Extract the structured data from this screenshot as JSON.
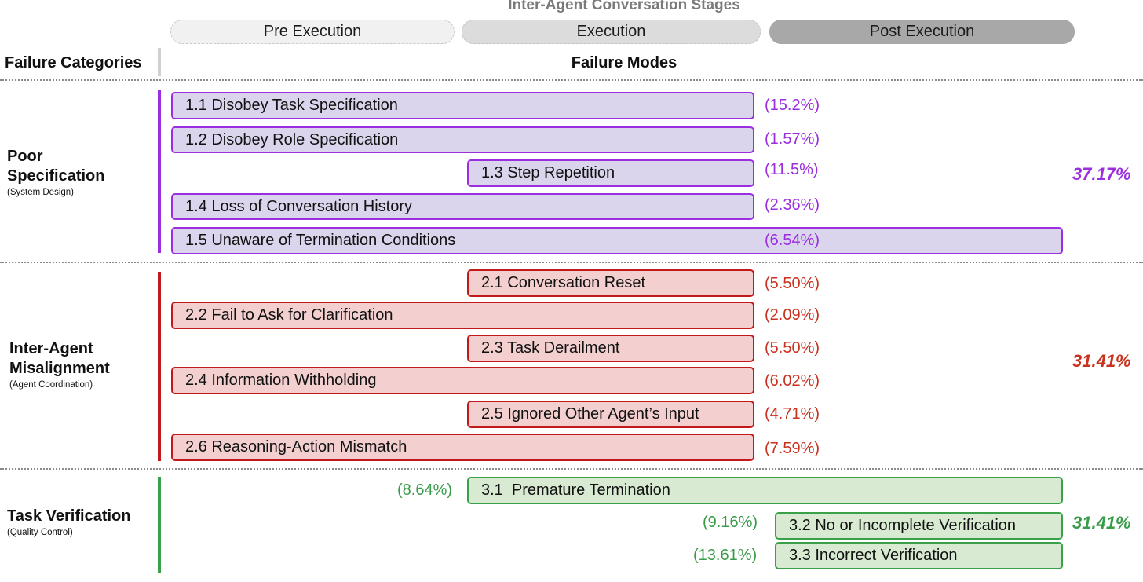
{
  "header": {
    "stages_title": "Inter-Agent Conversation Stages",
    "stages": [
      "Pre Execution",
      "Execution",
      "Post Execution"
    ],
    "failure_categories_label": "Failure Categories",
    "failure_modes_label": "Failure Modes"
  },
  "colors": {
    "purple": "#9b2fe0",
    "red": "#c21a1a",
    "green": "#3aa149",
    "purple_fill": "#dad5ec",
    "red_fill": "#f3d0cf",
    "green_fill": "#d8ebd2"
  },
  "categories": [
    {
      "name_line1": "Poor",
      "name_line2": "Specification",
      "subtitle": "(System Design)",
      "total": "37.17%",
      "modes": [
        {
          "label": "1.1 Disobey Task Specification",
          "pct": "(15.2%)"
        },
        {
          "label": "1.2 Disobey Role Specification",
          "pct": "(1.57%)"
        },
        {
          "label": "1.3 Step Repetition",
          "pct": "(11.5%)"
        },
        {
          "label": "1.4 Loss of Conversation History",
          "pct": "(2.36%)"
        },
        {
          "label": "1.5 Unaware of Termination Conditions",
          "pct": "(6.54%)"
        }
      ]
    },
    {
      "name_line1": "Inter-Agent",
      "name_line2": "Misalignment",
      "subtitle": "(Agent Coordination)",
      "total": "31.41%",
      "modes": [
        {
          "label": "2.1 Conversation Reset",
          "pct": "(5.50%)"
        },
        {
          "label": "2.2 Fail to Ask for Clarification",
          "pct": "(2.09%)"
        },
        {
          "label": "2.3 Task Derailment",
          "pct": "(5.50%)"
        },
        {
          "label": "2.4 Information Withholding",
          "pct": "(6.02%)"
        },
        {
          "label": "2.5 Ignored Other Agent’s Input",
          "pct": "(4.71%)"
        },
        {
          "label": "2.6 Reasoning-Action Mismatch",
          "pct": "(7.59%)"
        }
      ]
    },
    {
      "name_line1": "Task Verification",
      "subtitle": "(Quality Control)",
      "total": "31.41%",
      "modes": [
        {
          "label": "3.1  Premature Termination",
          "pct": "(8.64%)"
        },
        {
          "label": "3.2 No or Incomplete Verification",
          "pct": "(9.16%)"
        },
        {
          "label": "3.3 Incorrect Verification",
          "pct": "(13.61%)"
        }
      ]
    }
  ]
}
